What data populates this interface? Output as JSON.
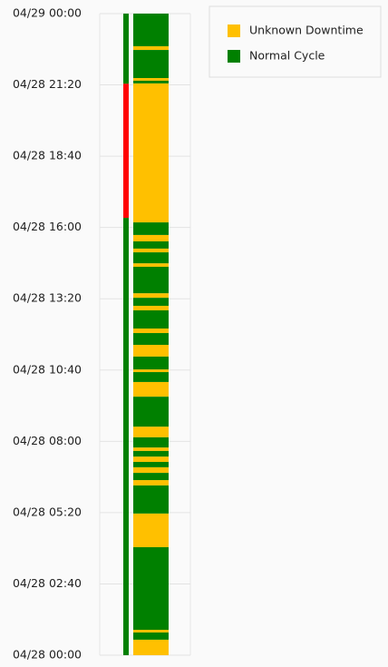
{
  "chart_data": {
    "type": "timeline",
    "ylim": [
      0,
      24
    ],
    "yticks": [
      {
        "value": 0,
        "label": "04/28 00:00"
      },
      {
        "value": 2.6667,
        "label": "04/28 02:40"
      },
      {
        "value": 5.3333,
        "label": "04/28 05:20"
      },
      {
        "value": 8,
        "label": "04/28 08:00"
      },
      {
        "value": 10.6667,
        "label": "04/28 10:40"
      },
      {
        "value": 13.3333,
        "label": "04/28 13:20"
      },
      {
        "value": 16,
        "label": "04/28 16:00"
      },
      {
        "value": 18.6667,
        "label": "04/28 18:40"
      },
      {
        "value": 21.3333,
        "label": "04/28 21:20"
      },
      {
        "value": 24,
        "label": "04/29 00:00"
      }
    ],
    "grid": true,
    "legend": "top-right",
    "status_segments": [
      {
        "color": "#008000",
        "values": [
          0,
          16.36
        ]
      },
      {
        "color": "#ff0000",
        "values": [
          16.36,
          21.38
        ]
      },
      {
        "color": "#008000",
        "values": [
          21.38,
          24
        ]
      }
    ],
    "series": [
      {
        "name": "Unknown Downtime",
        "color": "#ffc000",
        "values": [
          [
            0,
            0.58
          ],
          [
            0.85,
            0.95
          ],
          [
            4.04,
            5.3
          ],
          [
            6.35,
            6.55
          ],
          [
            6.82,
            7.03
          ],
          [
            7.23,
            7.43
          ],
          [
            7.64,
            7.77
          ],
          [
            8.15,
            8.55
          ],
          [
            9.67,
            10.22
          ],
          [
            10.59,
            10.69
          ],
          [
            11.17,
            11.61
          ],
          [
            12.05,
            12.22
          ],
          [
            12.9,
            13.07
          ],
          [
            13.37,
            13.54
          ],
          [
            14.53,
            14.66
          ],
          [
            15.07,
            15.21
          ],
          [
            15.48,
            15.72
          ],
          [
            16.19,
            21.39
          ],
          [
            21.49,
            21.59
          ],
          [
            22.64,
            22.78
          ]
        ]
      },
      {
        "name": "Normal Cycle",
        "color": "#008000",
        "values": [
          [
            0.58,
            0.85
          ],
          [
            0.95,
            4.04
          ],
          [
            5.3,
            6.35
          ],
          [
            6.55,
            6.82
          ],
          [
            7.03,
            7.23
          ],
          [
            7.43,
            7.64
          ],
          [
            7.77,
            8.15
          ],
          [
            8.55,
            9.67
          ],
          [
            10.22,
            10.59
          ],
          [
            10.69,
            11.17
          ],
          [
            11.61,
            12.05
          ],
          [
            12.22,
            12.9
          ],
          [
            13.07,
            13.37
          ],
          [
            13.54,
            14.53
          ],
          [
            14.66,
            15.07
          ],
          [
            15.21,
            15.48
          ],
          [
            15.72,
            16.19
          ],
          [
            21.39,
            21.49
          ],
          [
            21.59,
            22.64
          ],
          [
            22.78,
            24
          ]
        ]
      }
    ]
  }
}
